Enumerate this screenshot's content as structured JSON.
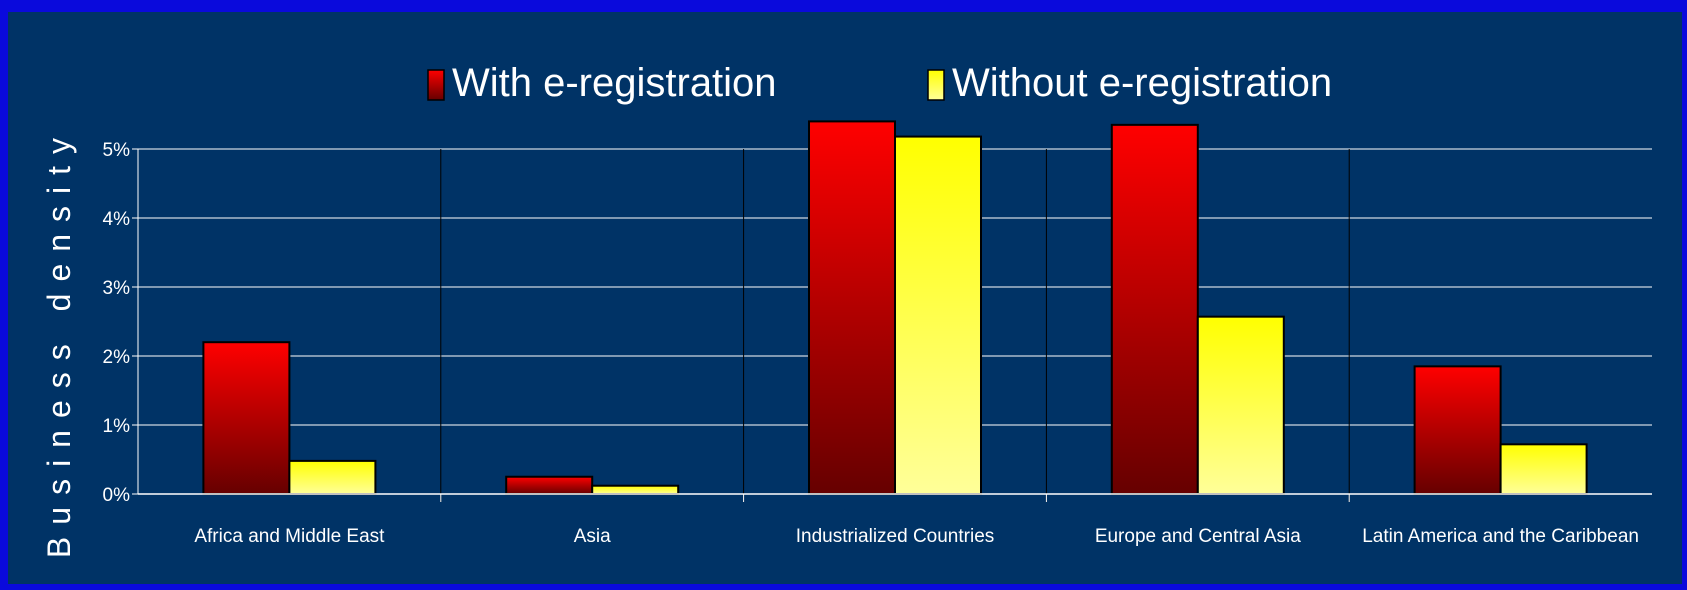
{
  "chart_data": {
    "type": "bar",
    "title": "",
    "xlabel": "",
    "ylabel": "Business density",
    "categories": [
      "Africa and Middle East",
      "Asia",
      "Industrialized Countries",
      "Europe and Central Asia",
      "Latin America and the Caribbean"
    ],
    "series": [
      {
        "name": "With e-registration",
        "values": [
          2.2,
          0.25,
          5.4,
          5.35,
          1.85
        ],
        "color_top": "#ff0000",
        "color_bottom": "#660000"
      },
      {
        "name": "Without e-registration",
        "values": [
          0.48,
          0.12,
          5.18,
          2.57,
          0.72
        ],
        "color_top": "#ffff00",
        "color_bottom": "#ffff99"
      }
    ],
    "ylim": [
      0,
      5
    ],
    "yticks": [
      "0%",
      "1%",
      "2%",
      "3%",
      "4%",
      "5%"
    ],
    "grid": true,
    "legend": "top"
  },
  "colors": {
    "background": "#003366",
    "border": "#0a0adc",
    "text": "#ffffff"
  }
}
